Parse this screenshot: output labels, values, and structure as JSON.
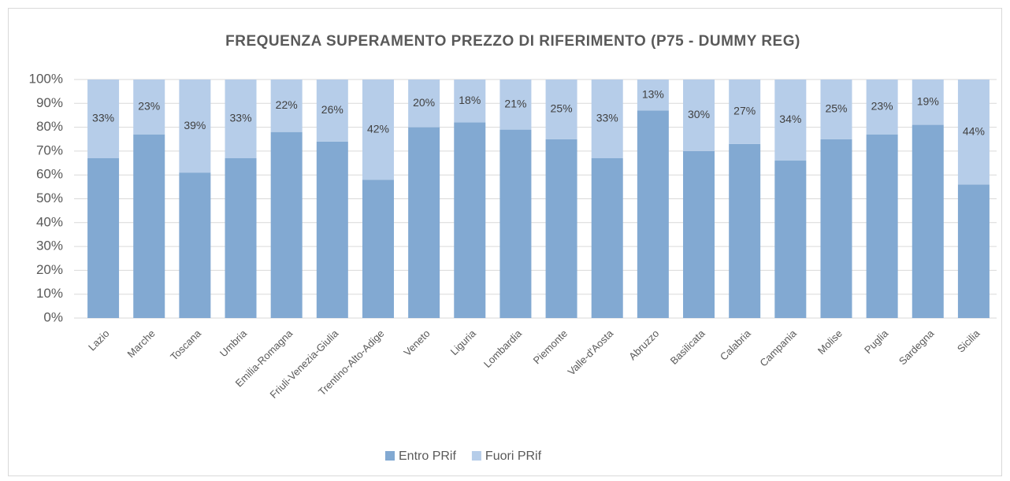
{
  "chart_data": {
    "type": "stacked-bar",
    "title": "FREQUENZA SUPERAMENTO PREZZO DI RIFERIMENTO (P75 - DUMMY REG)",
    "categories": [
      "Lazio",
      "Marche",
      "Toscana",
      "Umbria",
      "Emilia-Romagna",
      "Friuli-Venezia-Giulia",
      "Trentino-Alto-Adige",
      "Veneto",
      "Liguria",
      "Lombardia",
      "Piemonte",
      "Valle-d'Aosta",
      "Abruzzo",
      "Basilicata",
      "Calabria",
      "Campania",
      "Molise",
      "Puglia",
      "Sardegna",
      "Sicilia"
    ],
    "series": [
      {
        "name": "Entro PRif",
        "color": "#82a9d2",
        "values": [
          67,
          77,
          61,
          67,
          78,
          74,
          58,
          80,
          82,
          79,
          75,
          67,
          87,
          70,
          73,
          66,
          75,
          77,
          81,
          56
        ]
      },
      {
        "name": "Fuori PRif",
        "color": "#b6cde9",
        "values": [
          33,
          23,
          39,
          33,
          22,
          26,
          42,
          20,
          18,
          21,
          25,
          33,
          13,
          30,
          27,
          34,
          25,
          23,
          19,
          44
        ],
        "value_labels": [
          "33%",
          "23%",
          "39%",
          "33%",
          "22%",
          "26%",
          "42%",
          "20%",
          "18%",
          "21%",
          "25%",
          "33%",
          "13%",
          "30%",
          "27%",
          "34%",
          "25%",
          "23%",
          "19%",
          "44%"
        ]
      }
    ],
    "ylim": [
      0,
      100
    ],
    "yticks": [
      {
        "value": 0,
        "label": "0%"
      },
      {
        "value": 10,
        "label": "10%"
      },
      {
        "value": 20,
        "label": "20%"
      },
      {
        "value": 30,
        "label": "30%"
      },
      {
        "value": 40,
        "label": "40%"
      },
      {
        "value": 50,
        "label": "50%"
      },
      {
        "value": 60,
        "label": "60%"
      },
      {
        "value": 70,
        "label": "70%"
      },
      {
        "value": 80,
        "label": "80%"
      },
      {
        "value": 90,
        "label": "90%"
      },
      {
        "value": 100,
        "label": "100%"
      }
    ],
    "grid": true,
    "legend": "bottom"
  }
}
